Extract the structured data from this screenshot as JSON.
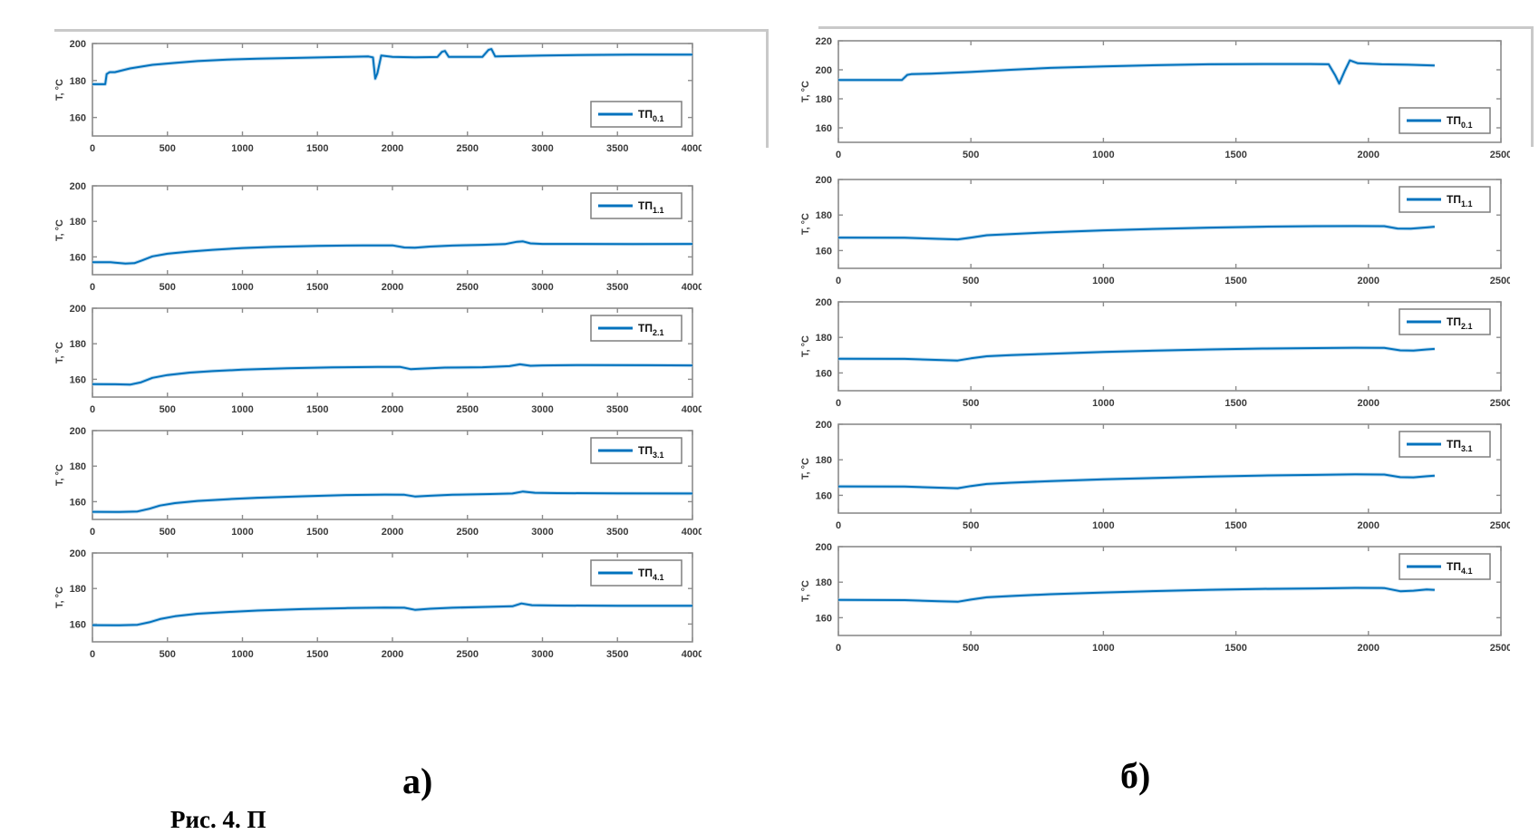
{
  "figure": {
    "caption_a": "а)",
    "caption_b": "б)",
    "bottom_caption_partial": "Рис. 4. П",
    "colors": {
      "line": "#0072BD",
      "line_halo": "#a9cfe9",
      "axis": "#8c8c8c",
      "tick_text": "#3a3a3a",
      "legend_border": "#7f7f7f"
    }
  },
  "chart_data": [
    {
      "id": "a1",
      "column": "a",
      "type": "line",
      "ylabel": "T, °C",
      "legend": {
        "label": "ТП",
        "subscript": "0.1",
        "position": "bottom-right"
      },
      "xlim": [
        0,
        4000
      ],
      "ylim": [
        150,
        200
      ],
      "xticks": [
        0,
        500,
        1000,
        1500,
        2000,
        2500,
        3000,
        3500,
        4000
      ],
      "yticks": [
        160,
        180,
        200
      ],
      "x": [
        0,
        85,
        95,
        115,
        150,
        250,
        400,
        550,
        700,
        900,
        1100,
        1400,
        1700,
        1840,
        1870,
        1885,
        1900,
        1925,
        2000,
        2150,
        2300,
        2330,
        2350,
        2375,
        2450,
        2600,
        2640,
        2660,
        2685,
        2800,
        3000,
        3300,
        3600,
        4000
      ],
      "y": [
        178,
        178,
        183.5,
        184.5,
        184.5,
        186.5,
        188.5,
        189.5,
        190.5,
        191.3,
        191.8,
        192.3,
        192.8,
        193,
        192.5,
        181,
        184,
        193.5,
        192.8,
        192.5,
        192.7,
        195.5,
        196,
        192.8,
        192.8,
        192.8,
        196.5,
        197,
        193,
        193.2,
        193.5,
        193.8,
        194,
        194
      ]
    },
    {
      "id": "a2",
      "column": "a",
      "type": "line",
      "ylabel": "T, °C",
      "legend": {
        "label": "ТП",
        "subscript": "1.1",
        "position": "top-right"
      },
      "xlim": [
        0,
        4000
      ],
      "ylim": [
        150,
        200
      ],
      "xticks": [
        0,
        500,
        1000,
        1500,
        2000,
        2500,
        3000,
        3500,
        4000
      ],
      "yticks": [
        160,
        180,
        200
      ],
      "x": [
        0,
        120,
        220,
        280,
        330,
        400,
        500,
        650,
        800,
        1000,
        1200,
        1500,
        1800,
        2000,
        2080,
        2150,
        2250,
        2400,
        2600,
        2750,
        2830,
        2870,
        2920,
        3000,
        3200,
        3600,
        4000
      ],
      "y": [
        157,
        157,
        156.3,
        156.5,
        158,
        160.3,
        161.8,
        163,
        164,
        165,
        165.6,
        166.2,
        166.5,
        166.5,
        165.3,
        165.2,
        165.8,
        166.4,
        166.8,
        167.2,
        168.5,
        168.7,
        167.6,
        167.3,
        167.3,
        167.2,
        167.3
      ]
    },
    {
      "id": "a3",
      "column": "a",
      "type": "line",
      "ylabel": "T, °C",
      "legend": {
        "label": "ТП",
        "subscript": "2.1",
        "position": "top-right"
      },
      "xlim": [
        0,
        4000
      ],
      "ylim": [
        150,
        200
      ],
      "xticks": [
        0,
        500,
        1000,
        1500,
        2000,
        2500,
        3000,
        3500,
        4000
      ],
      "yticks": [
        160,
        180,
        200
      ],
      "x": [
        0,
        150,
        250,
        320,
        400,
        500,
        650,
        800,
        1000,
        1300,
        1600,
        1900,
        2050,
        2120,
        2200,
        2350,
        2600,
        2780,
        2850,
        2920,
        3000,
        3300,
        3700,
        4000
      ],
      "y": [
        157.3,
        157.2,
        157,
        158.2,
        160.8,
        162.4,
        163.8,
        164.6,
        165.4,
        166.2,
        166.7,
        167,
        167,
        165.7,
        166,
        166.6,
        166.8,
        167.4,
        168.4,
        167.6,
        167.8,
        168,
        167.9,
        167.8
      ]
    },
    {
      "id": "a4",
      "column": "a",
      "type": "line",
      "ylabel": "T, °C",
      "legend": {
        "label": "ТП",
        "subscript": "3.1",
        "position": "top-right"
      },
      "xlim": [
        0,
        4000
      ],
      "ylim": [
        150,
        200
      ],
      "xticks": [
        0,
        500,
        1000,
        1500,
        2000,
        2500,
        3000,
        3500,
        4000
      ],
      "yticks": [
        160,
        180,
        200
      ],
      "x": [
        0,
        180,
        300,
        380,
        450,
        550,
        700,
        900,
        1100,
        1400,
        1700,
        1950,
        2080,
        2150,
        2250,
        2400,
        2650,
        2800,
        2870,
        2950,
        3100,
        3500,
        4000
      ],
      "y": [
        154.3,
        154.2,
        154.5,
        156,
        157.8,
        159.2,
        160.4,
        161.4,
        162.2,
        163,
        163.7,
        164,
        163.9,
        162.9,
        163.3,
        163.9,
        164.3,
        164.6,
        165.7,
        165,
        164.8,
        164.7,
        164.6
      ]
    },
    {
      "id": "a5",
      "column": "a",
      "type": "line",
      "ylabel": "T, °C",
      "legend": {
        "label": "ТП",
        "subscript": "4.1",
        "position": "top-right"
      },
      "xlim": [
        0,
        4000
      ],
      "ylim": [
        150,
        200
      ],
      "xticks": [
        0,
        500,
        1000,
        1500,
        2000,
        2500,
        3000,
        3500,
        4000
      ],
      "yticks": [
        160,
        180,
        200
      ],
      "x": [
        0,
        180,
        300,
        380,
        450,
        550,
        700,
        900,
        1100,
        1400,
        1700,
        1950,
        2080,
        2150,
        2250,
        2400,
        2650,
        2800,
        2860,
        2930,
        3100,
        3500,
        4000
      ],
      "y": [
        159.4,
        159.3,
        159.6,
        161,
        162.8,
        164.4,
        165.8,
        166.8,
        167.6,
        168.4,
        169,
        169.3,
        169.2,
        168,
        168.6,
        169.2,
        169.7,
        170,
        171.6,
        170.6,
        170.4,
        170.3,
        170.3
      ]
    },
    {
      "id": "b1",
      "column": "b",
      "type": "line",
      "ylabel": "T, °C",
      "legend": {
        "label": "ТП",
        "subscript": "0.1",
        "position": "bottom-right"
      },
      "xlim": [
        0,
        2500
      ],
      "ylim": [
        150,
        220
      ],
      "xticks": [
        0,
        500,
        1000,
        1500,
        2000,
        2500
      ],
      "yticks": [
        160,
        180,
        200,
        220
      ],
      "x": [
        0,
        240,
        260,
        275,
        350,
        500,
        650,
        800,
        1000,
        1200,
        1400,
        1600,
        1780,
        1850,
        1875,
        1890,
        1910,
        1930,
        1960,
        2050,
        2150,
        2250
      ],
      "y": [
        193,
        193,
        196.5,
        197,
        197.3,
        198.5,
        200,
        201.3,
        202.4,
        203.2,
        203.8,
        204,
        204,
        203.8,
        196,
        190.5,
        199,
        206.5,
        204.5,
        203.8,
        203.5,
        203
      ]
    },
    {
      "id": "b2",
      "column": "b",
      "type": "line",
      "ylabel": "T, °C",
      "legend": {
        "label": "ТП",
        "subscript": "1.1",
        "position": "top-right"
      },
      "xlim": [
        0,
        2500
      ],
      "ylim": [
        150,
        200
      ],
      "xticks": [
        0,
        500,
        1000,
        1500,
        2000,
        2500
      ],
      "yticks": [
        160,
        180,
        200
      ],
      "x": [
        0,
        250,
        380,
        450,
        500,
        560,
        650,
        800,
        1000,
        1200,
        1400,
        1600,
        1800,
        1950,
        2060,
        2110,
        2160,
        2220,
        2250
      ],
      "y": [
        167.3,
        167.2,
        166.6,
        166.3,
        167.3,
        168.6,
        169.3,
        170.3,
        171.4,
        172.2,
        172.9,
        173.4,
        173.7,
        173.8,
        173.7,
        172.4,
        172.3,
        173,
        173.4
      ]
    },
    {
      "id": "b3",
      "column": "b",
      "type": "line",
      "ylabel": "T, °C",
      "legend": {
        "label": "ТП",
        "subscript": "2.1",
        "position": "top-right"
      },
      "xlim": [
        0,
        2500
      ],
      "ylim": [
        150,
        200
      ],
      "xticks": [
        0,
        500,
        1000,
        1500,
        2000,
        2500
      ],
      "yticks": [
        160,
        180,
        200
      ],
      "x": [
        0,
        250,
        380,
        450,
        500,
        560,
        650,
        800,
        1000,
        1200,
        1400,
        1600,
        1800,
        1950,
        2060,
        2120,
        2170,
        2220,
        2250
      ],
      "y": [
        168,
        167.9,
        167.3,
        167,
        168.2,
        169.4,
        170,
        170.8,
        171.8,
        172.6,
        173.2,
        173.7,
        174,
        174.2,
        174.1,
        172.7,
        172.6,
        173.2,
        173.5
      ]
    },
    {
      "id": "b4",
      "column": "b",
      "type": "line",
      "ylabel": "T, °C",
      "legend": {
        "label": "ТП",
        "subscript": "3.1",
        "position": "top-right"
      },
      "xlim": [
        0,
        2500
      ],
      "ylim": [
        150,
        200
      ],
      "xticks": [
        0,
        500,
        1000,
        1500,
        2000,
        2500
      ],
      "yticks": [
        160,
        180,
        200
      ],
      "x": [
        0,
        250,
        380,
        450,
        500,
        560,
        650,
        800,
        1000,
        1200,
        1400,
        1600,
        1800,
        1950,
        2060,
        2120,
        2170,
        2220,
        2250
      ],
      "y": [
        165,
        164.9,
        164.3,
        164,
        165.2,
        166.4,
        167.1,
        168,
        169,
        169.8,
        170.5,
        171.1,
        171.5,
        171.8,
        171.7,
        170.2,
        170.1,
        170.7,
        171
      ]
    },
    {
      "id": "b5",
      "column": "b",
      "type": "line",
      "ylabel": "T, °C",
      "legend": {
        "label": "ТП",
        "subscript": "4.1",
        "position": "top-right"
      },
      "xlim": [
        0,
        2500
      ],
      "ylim": [
        150,
        200
      ],
      "xticks": [
        0,
        500,
        1000,
        1500,
        2000,
        2500
      ],
      "yticks": [
        160,
        180,
        200
      ],
      "x": [
        0,
        250,
        380,
        450,
        500,
        560,
        650,
        800,
        1000,
        1200,
        1400,
        1600,
        1800,
        1950,
        2060,
        2120,
        2170,
        2220,
        2250
      ],
      "y": [
        170,
        169.9,
        169.3,
        169,
        170.2,
        171.5,
        172.2,
        173.2,
        174.2,
        175,
        175.7,
        176.2,
        176.5,
        176.8,
        176.7,
        174.9,
        175.2,
        175.9,
        175.6
      ]
    }
  ]
}
